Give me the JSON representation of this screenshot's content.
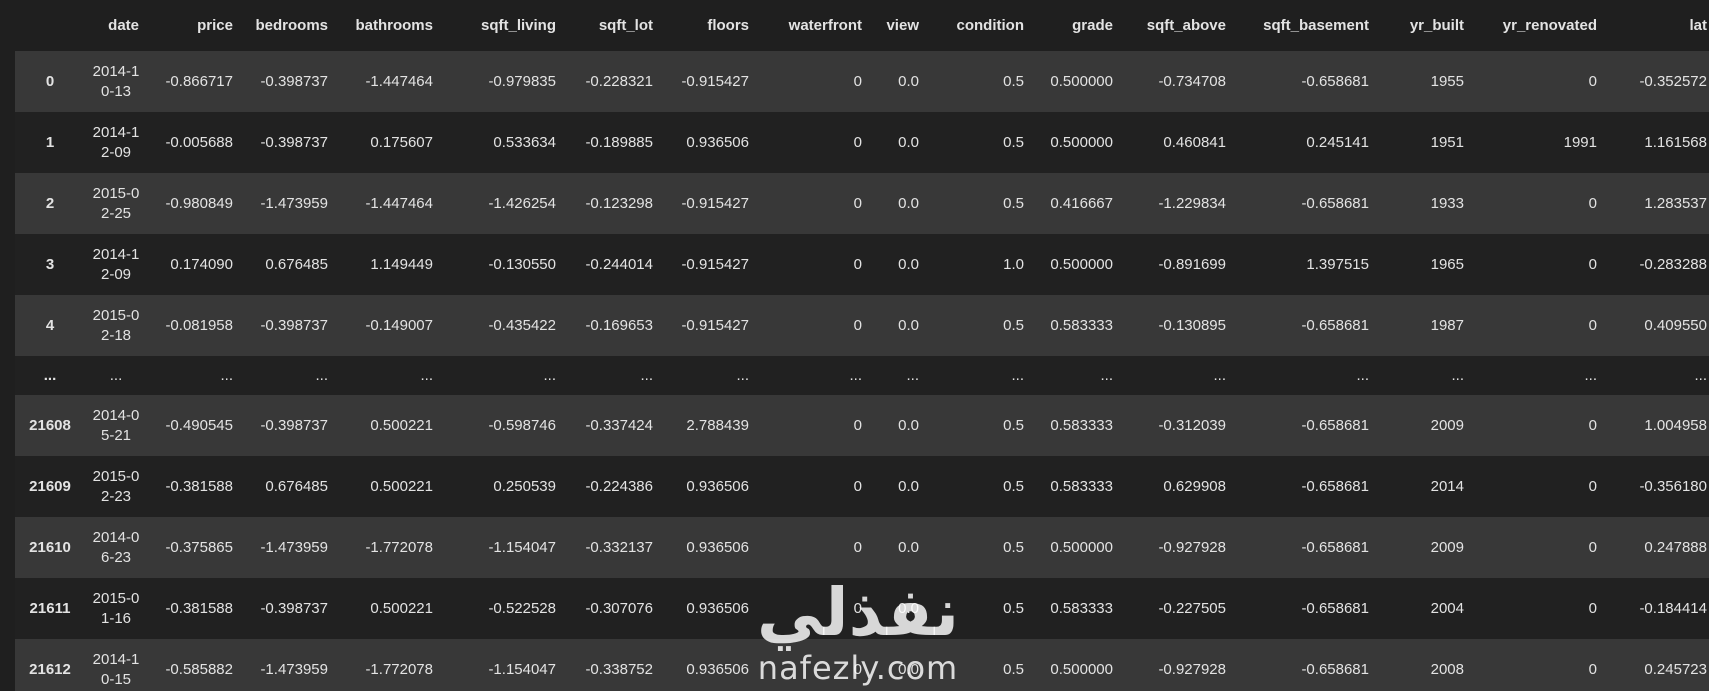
{
  "table": {
    "columns": [
      "",
      "date",
      "price",
      "bedrooms",
      "bathrooms",
      "sqft_living",
      "sqft_lot",
      "floors",
      "waterfront",
      "view",
      "condition",
      "grade",
      "sqft_above",
      "sqft_basement",
      "yr_built",
      "yr_renovated",
      "lat"
    ],
    "rows": [
      [
        "0",
        "2014-10-13",
        "-0.866717",
        "-0.398737",
        "-1.447464",
        "-0.979835",
        "-0.228321",
        "-0.915427",
        "0",
        "0.0",
        "0.5",
        "0.500000",
        "-0.734708",
        "-0.658681",
        "1955",
        "0",
        "-0.352572"
      ],
      [
        "1",
        "2014-12-09",
        "-0.005688",
        "-0.398737",
        "0.175607",
        "0.533634",
        "-0.189885",
        "0.936506",
        "0",
        "0.0",
        "0.5",
        "0.500000",
        "0.460841",
        "0.245141",
        "1951",
        "1991",
        "1.161568"
      ],
      [
        "2",
        "2015-02-25",
        "-0.980849",
        "-1.473959",
        "-1.447464",
        "-1.426254",
        "-0.123298",
        "-0.915427",
        "0",
        "0.0",
        "0.5",
        "0.416667",
        "-1.229834",
        "-0.658681",
        "1933",
        "0",
        "1.283537"
      ],
      [
        "3",
        "2014-12-09",
        "0.174090",
        "0.676485",
        "1.149449",
        "-0.130550",
        "-0.244014",
        "-0.915427",
        "0",
        "0.0",
        "1.0",
        "0.500000",
        "-0.891699",
        "1.397515",
        "1965",
        "0",
        "-0.283288"
      ],
      [
        "4",
        "2015-02-18",
        "-0.081958",
        "-0.398737",
        "-0.149007",
        "-0.435422",
        "-0.169653",
        "-0.915427",
        "0",
        "0.0",
        "0.5",
        "0.583333",
        "-0.130895",
        "-0.658681",
        "1987",
        "0",
        "0.409550"
      ],
      [
        "...",
        "...",
        "...",
        "...",
        "...",
        "...",
        "...",
        "...",
        "...",
        "...",
        "...",
        "...",
        "...",
        "...",
        "...",
        "...",
        "..."
      ],
      [
        "21608",
        "2014-05-21",
        "-0.490545",
        "-0.398737",
        "0.500221",
        "-0.598746",
        "-0.337424",
        "2.788439",
        "0",
        "0.0",
        "0.5",
        "0.583333",
        "-0.312039",
        "-0.658681",
        "2009",
        "0",
        "1.004958"
      ],
      [
        "21609",
        "2015-02-23",
        "-0.381588",
        "0.676485",
        "0.500221",
        "0.250539",
        "-0.224386",
        "0.936506",
        "0",
        "0.0",
        "0.5",
        "0.583333",
        "0.629908",
        "-0.658681",
        "2014",
        "0",
        "-0.356180"
      ],
      [
        "21610",
        "2014-06-23",
        "-0.375865",
        "-1.473959",
        "-1.772078",
        "-1.154047",
        "-0.332137",
        "0.936506",
        "0",
        "0.0",
        "0.5",
        "0.500000",
        "-0.927928",
        "-0.658681",
        "2009",
        "0",
        "0.247888"
      ],
      [
        "21611",
        "2015-01-16",
        "-0.381588",
        "-0.398737",
        "0.500221",
        "-0.522528",
        "-0.307076",
        "0.936506",
        "0",
        "0.0",
        "0.5",
        "0.583333",
        "-0.227505",
        "-0.658681",
        "2004",
        "0",
        "-0.184414"
      ],
      [
        "21612",
        "2014-10-15",
        "-0.585882",
        "-1.473959",
        "-1.772078",
        "-1.154047",
        "-0.338752",
        "0.936506",
        "0",
        "0.0",
        "0.5",
        "0.500000",
        "-0.927928",
        "-0.658681",
        "2008",
        "0",
        "0.245723"
      ]
    ]
  },
  "watermark": {
    "arabic": "نفذلي",
    "latin": "nafezly.com"
  }
}
